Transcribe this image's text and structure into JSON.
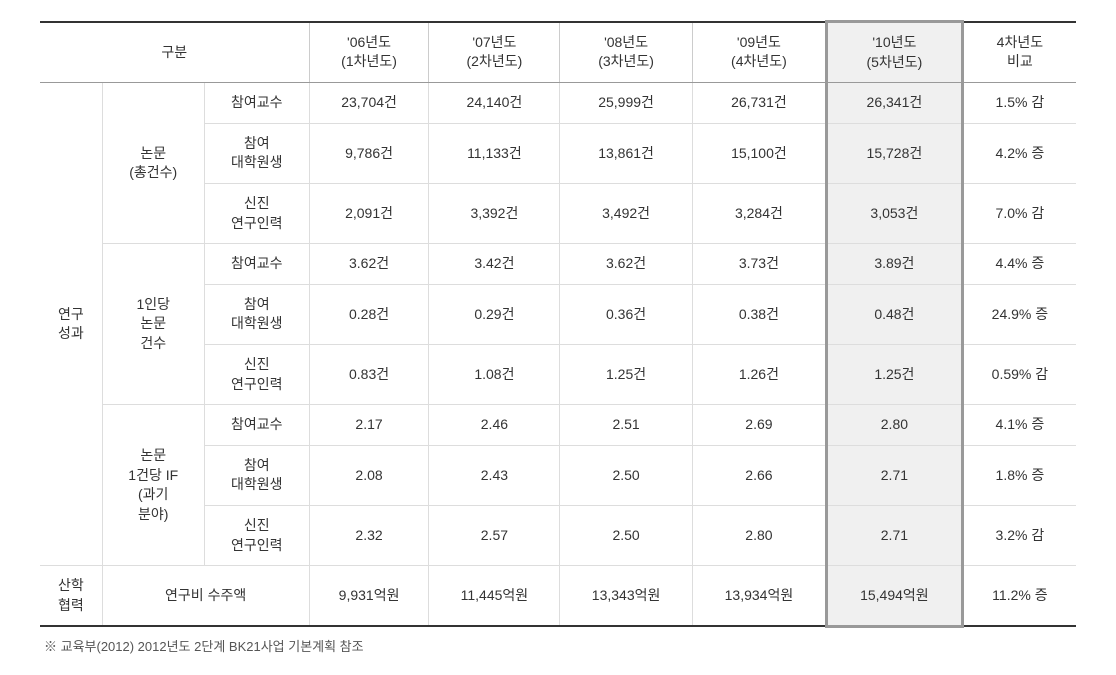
{
  "table": {
    "columns": {
      "category": "구분",
      "y06": "'06년도\n(1차년도)",
      "y07": "'07년도\n(2차년도)",
      "y08": "'08년도\n(3차년도)",
      "y09": "'09년도\n(4차년도)",
      "y10": "'10년도\n(5차년도)",
      "compare": "4차년도\n비교"
    },
    "groups": {
      "research": "연구\n성과",
      "papers_total": "논문\n(총건수)",
      "papers_per": "1인당\n논문\n건수",
      "papers_if": "논문\n1건당 IF\n(과기\n분야)",
      "industry": "산학\n협력",
      "research_fund": "연구비 수주액"
    },
    "subcats": {
      "prof": "참여교수",
      "grad": "참여\n대학원생",
      "new": "신진\n연구인력"
    },
    "rows": {
      "total_prof": {
        "y06": "23,704건",
        "y07": "24,140건",
        "y08": "25,999건",
        "y09": "26,731건",
        "y10": "26,341건",
        "cmp": "1.5% 감"
      },
      "total_grad": {
        "y06": "9,786건",
        "y07": "11,133건",
        "y08": "13,861건",
        "y09": "15,100건",
        "y10": "15,728건",
        "cmp": "4.2% 증"
      },
      "total_new": {
        "y06": "2,091건",
        "y07": "3,392건",
        "y08": "3,492건",
        "y09": "3,284건",
        "y10": "3,053건",
        "cmp": "7.0% 감"
      },
      "per_prof": {
        "y06": "3.62건",
        "y07": "3.42건",
        "y08": "3.62건",
        "y09": "3.73건",
        "y10": "3.89건",
        "cmp": "4.4% 증"
      },
      "per_grad": {
        "y06": "0.28건",
        "y07": "0.29건",
        "y08": "0.36건",
        "y09": "0.38건",
        "y10": "0.48건",
        "cmp": "24.9% 증"
      },
      "per_new": {
        "y06": "0.83건",
        "y07": "1.08건",
        "y08": "1.25건",
        "y09": "1.26건",
        "y10": "1.25건",
        "cmp": "0.59% 감"
      },
      "if_prof": {
        "y06": "2.17",
        "y07": "2.46",
        "y08": "2.51",
        "y09": "2.69",
        "y10": "2.80",
        "cmp": "4.1% 증"
      },
      "if_grad": {
        "y06": "2.08",
        "y07": "2.43",
        "y08": "2.50",
        "y09": "2.66",
        "y10": "2.71",
        "cmp": "1.8% 증"
      },
      "if_new": {
        "y06": "2.32",
        "y07": "2.57",
        "y08": "2.50",
        "y09": "2.80",
        "y10": "2.71",
        "cmp": "3.2% 감"
      },
      "fund": {
        "y06": "9,931억원",
        "y07": "11,445억원",
        "y08": "13,343억원",
        "y09": "13,934억원",
        "y10": "15,494억원",
        "cmp": "11.2% 증"
      }
    }
  },
  "footnote": "※ 교육부(2012) 2012년도 2단계 BK21사업 기본계획 참조"
}
